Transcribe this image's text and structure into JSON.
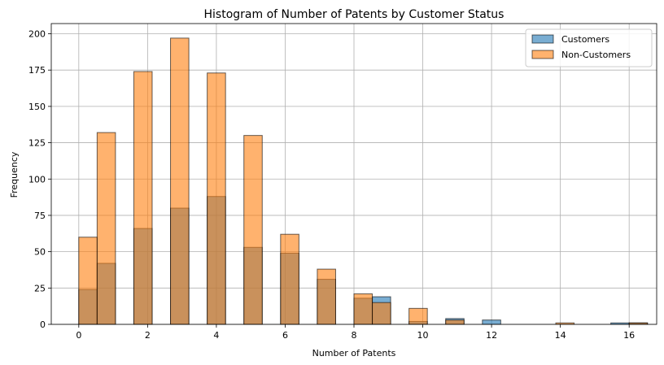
{
  "chart_data": {
    "type": "bar",
    "title": "Histogram of Number of Patents by Customer Status",
    "xlabel": "Number of Patents",
    "ylabel": "Frequency",
    "xlim": [
      -0.8,
      16.8
    ],
    "ylim": [
      0,
      207
    ],
    "bin_width": 0.5333,
    "xticks": [
      0,
      2,
      4,
      6,
      8,
      10,
      12,
      14,
      16
    ],
    "yticks": [
      0,
      25,
      50,
      75,
      100,
      125,
      150,
      175,
      200
    ],
    "grid": true,
    "legend_position": "top-right",
    "series": [
      {
        "name": "Customers",
        "color": "#1f77b4",
        "bins": [
          {
            "x": 0,
            "value": 24
          },
          {
            "x": 0.5333,
            "value": 42
          },
          {
            "x": 1.6,
            "value": 66
          },
          {
            "x": 2.6667,
            "value": 80
          },
          {
            "x": 3.7333,
            "value": 88
          },
          {
            "x": 4.8,
            "value": 53
          },
          {
            "x": 5.8667,
            "value": 49
          },
          {
            "x": 6.9333,
            "value": 31
          },
          {
            "x": 8.0,
            "value": 18
          },
          {
            "x": 8.5333,
            "value": 19
          },
          {
            "x": 9.6,
            "value": 2
          },
          {
            "x": 10.6667,
            "value": 4
          },
          {
            "x": 11.7333,
            "value": 3
          },
          {
            "x": 15.4667,
            "value": 1
          },
          {
            "x": 16.0,
            "value": 1
          }
        ]
      },
      {
        "name": "Non-Customers",
        "color": "#ff7f0e",
        "bins": [
          {
            "x": 0,
            "value": 60
          },
          {
            "x": 0.5333,
            "value": 132
          },
          {
            "x": 1.6,
            "value": 174
          },
          {
            "x": 2.6667,
            "value": 197
          },
          {
            "x": 3.7333,
            "value": 173
          },
          {
            "x": 4.8,
            "value": 130
          },
          {
            "x": 5.8667,
            "value": 62
          },
          {
            "x": 6.9333,
            "value": 38
          },
          {
            "x": 8.0,
            "value": 21
          },
          {
            "x": 8.5333,
            "value": 15
          },
          {
            "x": 9.6,
            "value": 11
          },
          {
            "x": 10.6667,
            "value": 3
          },
          {
            "x": 13.8667,
            "value": 1
          },
          {
            "x": 16.0,
            "value": 1
          }
        ]
      }
    ]
  }
}
